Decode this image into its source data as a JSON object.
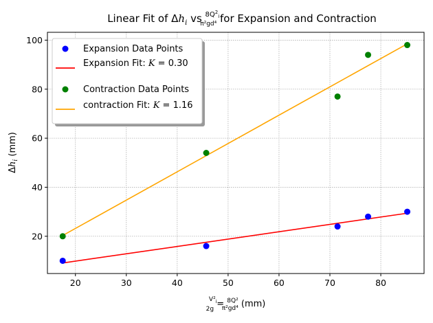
{
  "chart_data": {
    "type": "scatter",
    "title": {
      "prefix": "Linear Fit of Δ",
      "var": "h",
      "sub": "i",
      "mid": " vs ",
      "frac_num": "8Q",
      "frac_num_sup": "2",
      "frac_num_sub": "i",
      "frac_den": "π²gd⁴",
      "suffix": " for Expansion and Contraction"
    },
    "xlabel": {
      "frac1_num": "V²",
      "frac1_num_sub": "i",
      "frac1_den": "2g",
      "eq": " = ",
      "frac2_num": "8Q²",
      "frac2_den": "π²gd⁴",
      "unit": " (mm)"
    },
    "ylabel": {
      "prefix": "Δ",
      "var": "h",
      "sub": "i",
      "unit": " (mm)"
    },
    "xlim": [
      14.5,
      88.5
    ],
    "ylim": [
      4.8,
      103.2
    ],
    "xticks": [
      20,
      30,
      40,
      50,
      60,
      70,
      80
    ],
    "yticks": [
      20,
      40,
      60,
      80,
      100
    ],
    "grid": true,
    "legend_position": "top-left",
    "series": [
      {
        "name": "Expansion Data Points",
        "kind": "points",
        "color": "#0000ff",
        "x": [
          17.5,
          45.7,
          71.5,
          77.5,
          85.2
        ],
        "y": [
          10,
          16,
          24,
          28,
          30
        ]
      },
      {
        "name": "Expansion Fit: ",
        "param_symbol": "K",
        "param_value": " = 0.30",
        "kind": "line",
        "color": "#ff0000",
        "x": [
          17.5,
          85.2
        ],
        "y": [
          9.1,
          29.4
        ]
      },
      {
        "name": "Contraction Data Points",
        "kind": "points",
        "color": "#008000",
        "x": [
          17.5,
          45.7,
          71.5,
          77.5,
          85.2
        ],
        "y": [
          20,
          54,
          77,
          94,
          98
        ]
      },
      {
        "name": "contraction Fit: ",
        "param_symbol": "K",
        "param_value": " = 1.16",
        "kind": "line",
        "color": "#ffa500",
        "x": [
          17.5,
          85.2
        ],
        "y": [
          20.3,
          98.5
        ]
      }
    ]
  }
}
